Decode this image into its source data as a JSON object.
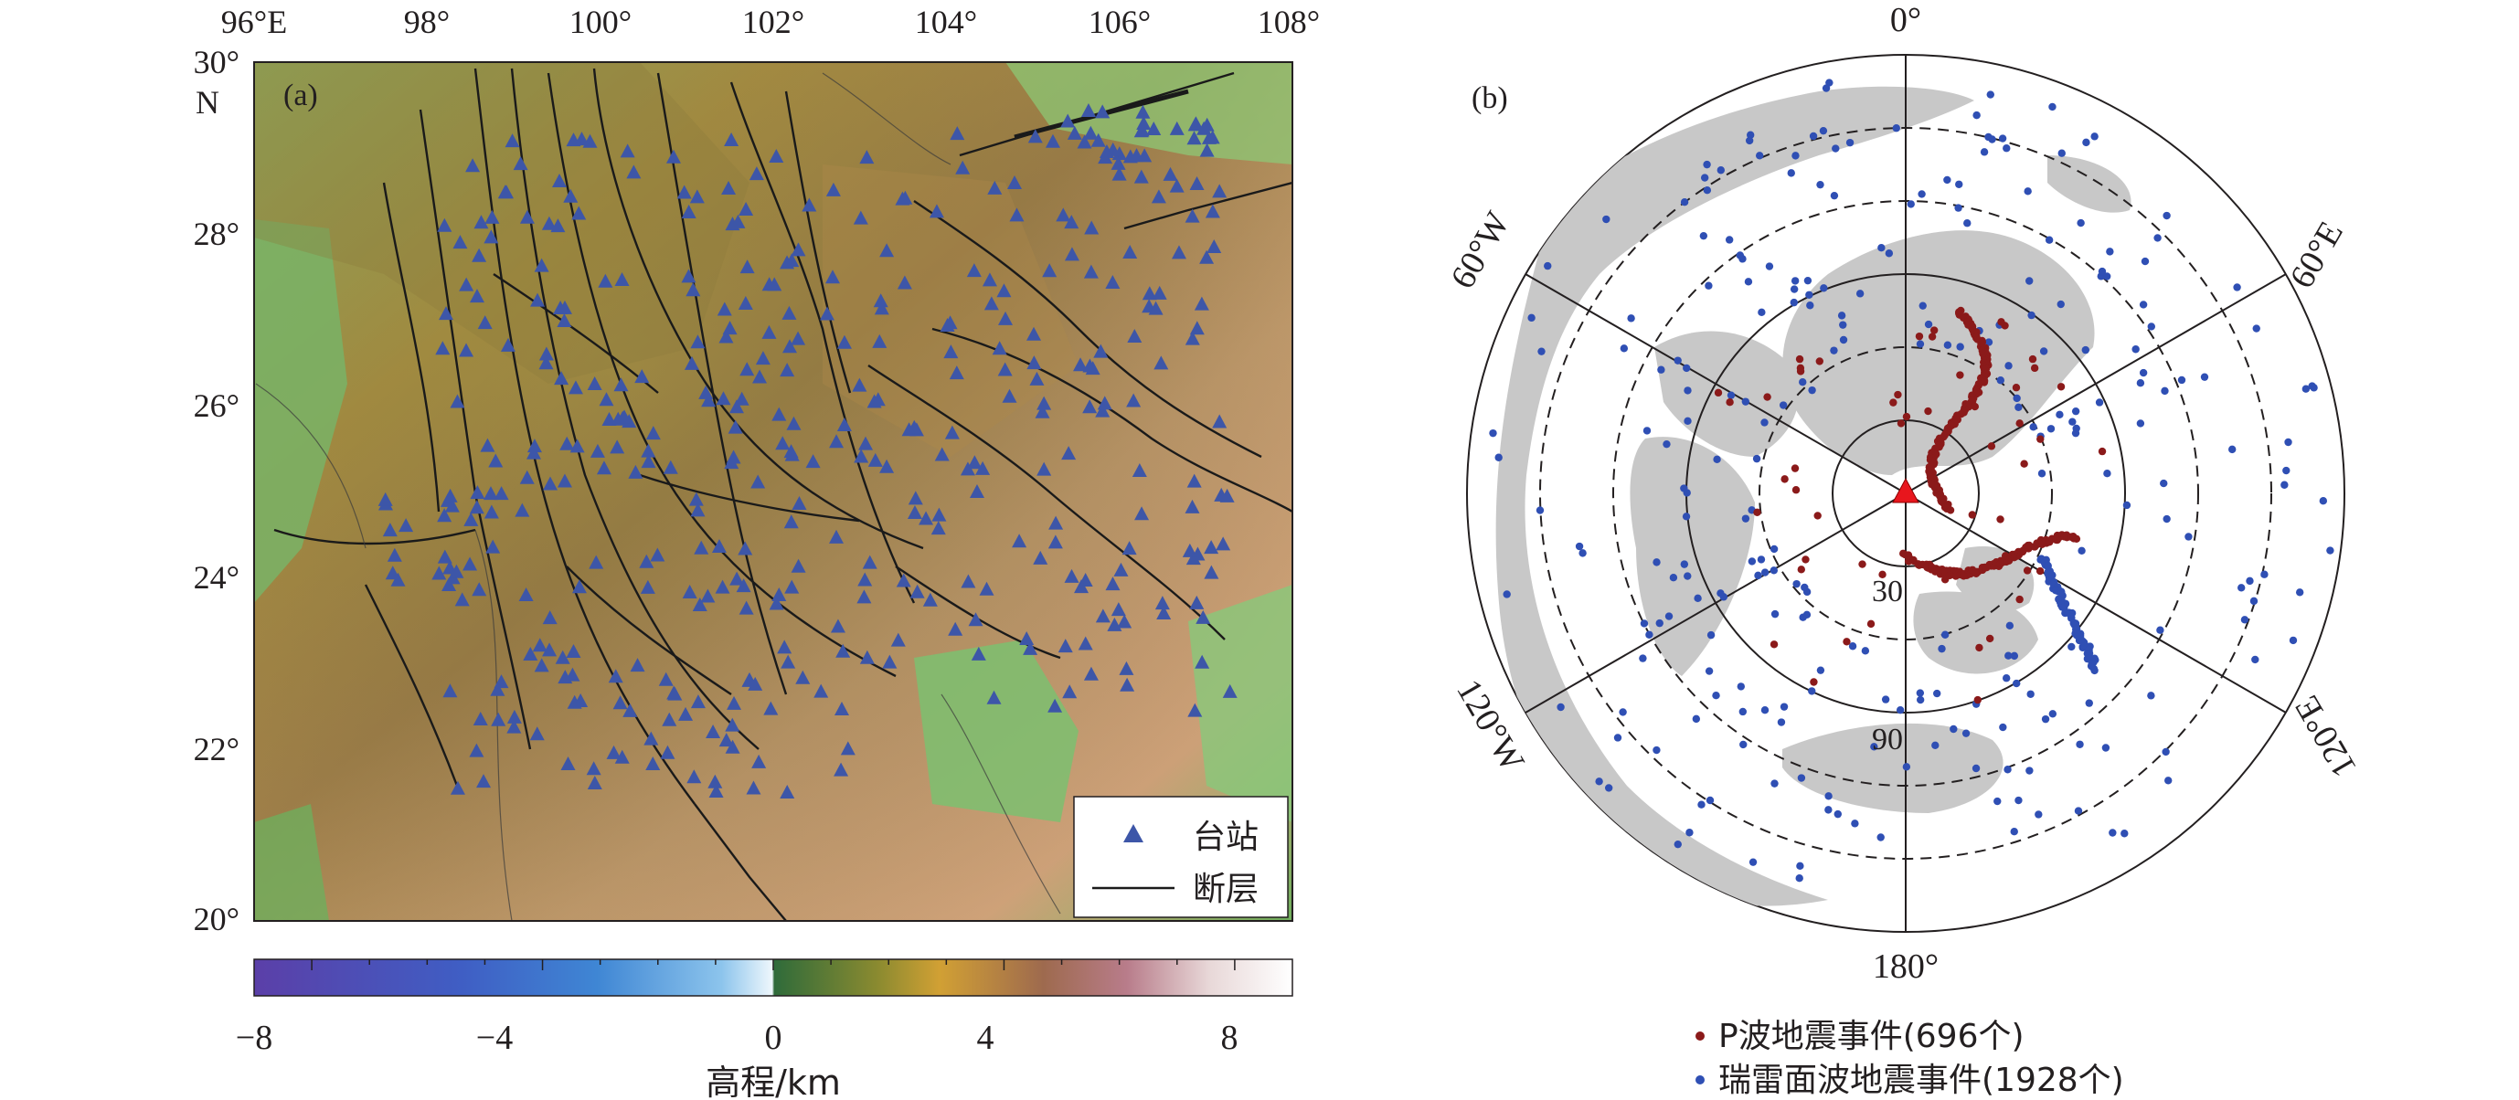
{
  "panel_a": {
    "label": "(a)",
    "lon_ticks": [
      "96°E",
      "98°",
      "100°",
      "102°",
      "104°",
      "106°",
      "108°"
    ],
    "lat_ticks": [
      "30°",
      "28°",
      "26°",
      "24°",
      "22°",
      "20°"
    ],
    "lat_unit": "N",
    "legend": {
      "station": "台站",
      "fault": "断层"
    },
    "colorbar": {
      "ticks": [
        "−8",
        "−4",
        "0",
        "4",
        "8"
      ],
      "label": "高程/km",
      "range_km": [
        -9,
        9
      ]
    },
    "colors": {
      "station": "#3d56a8",
      "fault": "#1a1a1a"
    }
  },
  "panel_b": {
    "label": "(b)",
    "azimuth_labels": {
      "north": "0°",
      "east": "60°E",
      "southeast": "120°E",
      "south": "180°",
      "southwest": "120°W",
      "west": "60°W"
    },
    "distance_labels": [
      "30",
      "90"
    ],
    "legend": {
      "p_wave": "P波地震事件(696个)",
      "rayleigh": "瑞雷面波地震事件(1928个)"
    },
    "colors": {
      "p_wave": "#8b1a1a",
      "rayleigh": "#2f4fb4",
      "land": "#c8c8c8",
      "center_station": "#e8161d"
    }
  }
}
